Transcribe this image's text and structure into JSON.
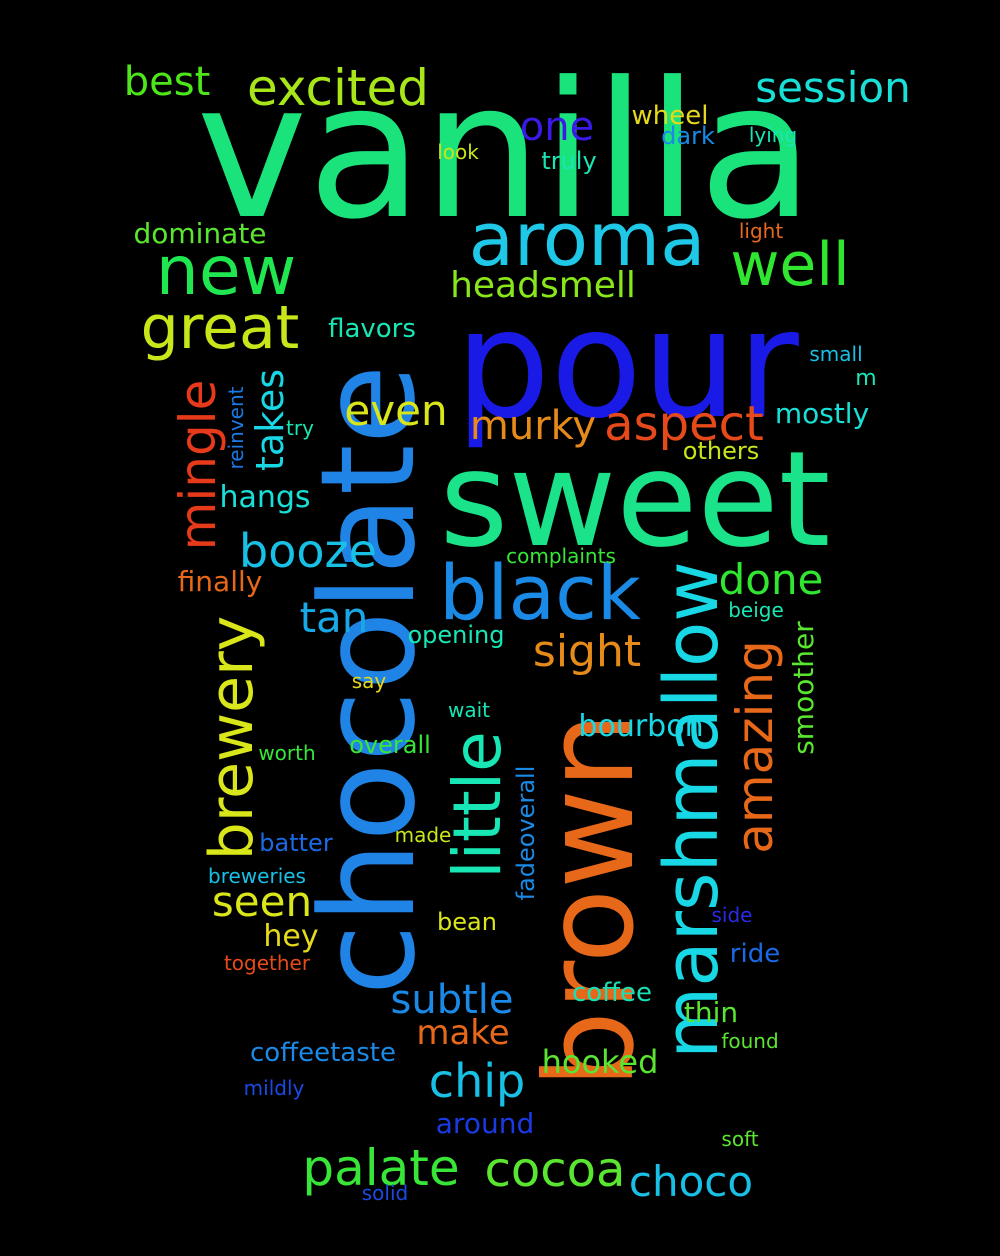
{
  "words": [
    {
      "text": "vanilla",
      "color": "#1be37c"
    },
    {
      "text": "pour",
      "color": "#1a1ae6"
    },
    {
      "text": "sweet",
      "color": "#1be38a"
    },
    {
      "text": "chocolate",
      "color": "#1f84e6"
    },
    {
      "text": "brown",
      "color": "#e8681a"
    },
    {
      "text": "marshmallow",
      "color": "#18d8e6"
    },
    {
      "text": "black",
      "color": "#1a8ae6"
    },
    {
      "text": "little",
      "color": "#18e6b4"
    },
    {
      "text": "aroma",
      "color": "#1ec8e6"
    },
    {
      "text": "new",
      "color": "#20e650"
    },
    {
      "text": "well",
      "color": "#30e630"
    },
    {
      "text": "great",
      "color": "#c8e61a"
    },
    {
      "text": "excited",
      "color": "#a8e61a"
    },
    {
      "text": "session",
      "color": "#18e0d6"
    },
    {
      "text": "best",
      "color": "#4ce61a"
    },
    {
      "text": "one",
      "color": "#3a1ae6"
    },
    {
      "text": "wheel",
      "color": "#e6d81a"
    },
    {
      "text": "dark",
      "color": "#1a8ae6"
    },
    {
      "text": "lying",
      "color": "#18e6b4"
    },
    {
      "text": "look",
      "color": "#c8e61a"
    },
    {
      "text": "truly",
      "color": "#18e6b4"
    },
    {
      "text": "dominate",
      "color": "#5ae630"
    },
    {
      "text": "light",
      "color": "#e8681a"
    },
    {
      "text": "headsmell",
      "color": "#88e61a"
    },
    {
      "text": "flavors",
      "color": "#18e6b4"
    },
    {
      "text": "small",
      "color": "#18c0e6"
    },
    {
      "text": "m",
      "color": "#18e6b4"
    },
    {
      "text": "mingle",
      "color": "#e63a1a"
    },
    {
      "text": "reinvent",
      "color": "#1a7ae6"
    },
    {
      "text": "takes",
      "color": "#18d8e6"
    },
    {
      "text": "try",
      "color": "#18e6b4"
    },
    {
      "text": "even",
      "color": "#d8e61a"
    },
    {
      "text": "murky",
      "color": "#e68a1a"
    },
    {
      "text": "aspect",
      "color": "#e64a1a"
    },
    {
      "text": "mostly",
      "color": "#18e0d6"
    },
    {
      "text": "others",
      "color": "#c8e61a"
    },
    {
      "text": "hangs",
      "color": "#18e0d6"
    },
    {
      "text": "booze",
      "color": "#18c0e6"
    },
    {
      "text": "complaints",
      "color": "#38e638"
    },
    {
      "text": "done",
      "color": "#30e630"
    },
    {
      "text": "finally",
      "color": "#e8681a"
    },
    {
      "text": "beige",
      "color": "#18e6b4"
    },
    {
      "text": "tan",
      "color": "#18a8e6"
    },
    {
      "text": "brewery",
      "color": "#d8e61a"
    },
    {
      "text": "opening",
      "color": "#18e6b4"
    },
    {
      "text": "sight",
      "color": "#e68a1a"
    },
    {
      "text": "amazing",
      "color": "#e8681a"
    },
    {
      "text": "smoother",
      "color": "#5ae630"
    },
    {
      "text": "say",
      "color": "#e6d81a"
    },
    {
      "text": "wait",
      "color": "#18e6b4"
    },
    {
      "text": "bourbon",
      "color": "#18d8e6"
    },
    {
      "text": "worth",
      "color": "#38e638"
    },
    {
      "text": "overall",
      "color": "#38e638"
    },
    {
      "text": "fadeoverall",
      "color": "#1a8ae6"
    },
    {
      "text": "batter",
      "color": "#1a6ae6"
    },
    {
      "text": "made",
      "color": "#c8e61a"
    },
    {
      "text": "breweries",
      "color": "#18c0e6"
    },
    {
      "text": "seen",
      "color": "#d8e61a"
    },
    {
      "text": "bean",
      "color": "#d8e61a"
    },
    {
      "text": "side",
      "color": "#2a2ae6"
    },
    {
      "text": "hey",
      "color": "#e6d81a"
    },
    {
      "text": "ride",
      "color": "#1a6ae6"
    },
    {
      "text": "together",
      "color": "#e64a1a"
    },
    {
      "text": "subtle",
      "color": "#1a8ae6"
    },
    {
      "text": "coffee",
      "color": "#18e0b4"
    },
    {
      "text": "thin",
      "color": "#5ae630"
    },
    {
      "text": "make",
      "color": "#e8681a"
    },
    {
      "text": "coffeetaste",
      "color": "#1a8ae6"
    },
    {
      "text": "found",
      "color": "#5ae630"
    },
    {
      "text": "hooked",
      "color": "#5ae630"
    },
    {
      "text": "chip",
      "color": "#18c0e6"
    },
    {
      "text": "mildly",
      "color": "#1a4ae6"
    },
    {
      "text": "around",
      "color": "#1a3ae6"
    },
    {
      "text": "soft",
      "color": "#5ae630"
    },
    {
      "text": "palate",
      "color": "#38e638"
    },
    {
      "text": "cocoa",
      "color": "#5ae630"
    },
    {
      "text": "choco",
      "color": "#18c0e6"
    },
    {
      "text": "solid",
      "color": "#1a4ae6"
    }
  ]
}
